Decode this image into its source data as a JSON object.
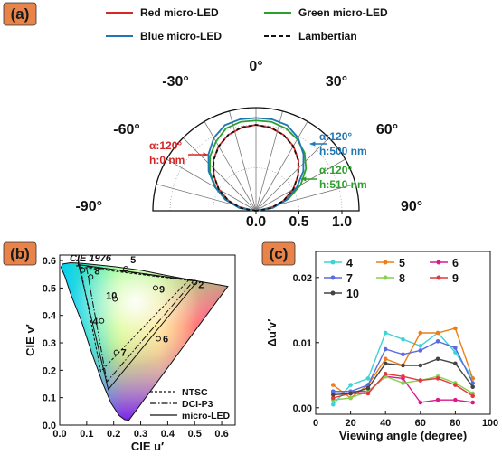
{
  "colors": {
    "red": "#d62728",
    "green": "#2ca02c",
    "blue": "#1f77b4",
    "black": "#111111",
    "badge": "#e8834a",
    "s4": "#3fd3d3",
    "s5": "#ee7e18",
    "s6": "#d81b8a",
    "s7": "#5a6be0",
    "s8": "#86cf52",
    "s9": "#e3393b",
    "s10": "#444444"
  },
  "chart_data": [
    {
      "panel_label": "(a)",
      "type": "polar",
      "legend": [
        "Red micro-LED",
        "Green micro-LED",
        "Blue micro-LED",
        "Lambertian"
      ],
      "angle_ticks": [
        "0°",
        "30°",
        "60°",
        "90°",
        "-30°",
        "-60°",
        "-90°"
      ],
      "radial_ticks": [
        "0.0",
        "0.5",
        "1.0"
      ],
      "rlim": [
        0,
        1.2
      ],
      "annotations": {
        "red": {
          "alpha": "α:120°",
          "h": "h:0 nm"
        },
        "blue": {
          "alpha": "α:120°",
          "h": "h:500 nm"
        },
        "green": {
          "alpha": "α:120°",
          "h": "h:510 nm"
        }
      },
      "series": [
        {
          "name": "Red micro-LED",
          "angles": [
            -90,
            -80,
            -70,
            -60,
            -50,
            -40,
            -30,
            -20,
            -10,
            0,
            10,
            20,
            30,
            40,
            50,
            60,
            70,
            80,
            90
          ],
          "values": [
            0.0,
            0.18,
            0.34,
            0.5,
            0.64,
            0.77,
            0.87,
            0.94,
            0.98,
            1.0,
            0.98,
            0.94,
            0.87,
            0.77,
            0.64,
            0.5,
            0.34,
            0.18,
            0.0
          ]
        },
        {
          "name": "Green micro-LED",
          "angles": [
            -90,
            -80,
            -70,
            -60,
            -50,
            -40,
            -30,
            -20,
            -10,
            0,
            10,
            20,
            30,
            40,
            50,
            60,
            70,
            80,
            90
          ],
          "values": [
            0.0,
            0.2,
            0.38,
            0.54,
            0.7,
            0.83,
            0.93,
            1.02,
            1.05,
            1.05,
            1.05,
            1.02,
            0.96,
            0.88,
            0.76,
            0.6,
            0.4,
            0.2,
            0.0
          ]
        },
        {
          "name": "Blue micro-LED",
          "angles": [
            -90,
            -80,
            -70,
            -60,
            -50,
            -40,
            -30,
            -20,
            -10,
            0,
            10,
            20,
            30,
            40,
            50,
            60,
            70,
            80,
            90
          ],
          "values": [
            0.0,
            0.2,
            0.38,
            0.55,
            0.72,
            0.86,
            0.98,
            1.06,
            1.08,
            1.08,
            1.08,
            1.06,
            0.98,
            0.86,
            0.72,
            0.55,
            0.38,
            0.2,
            0.0
          ]
        },
        {
          "name": "Lambertian",
          "angles": [
            -90,
            -80,
            -70,
            -60,
            -50,
            -40,
            -30,
            -20,
            -10,
            0,
            10,
            20,
            30,
            40,
            50,
            60,
            70,
            80,
            90
          ],
          "values": [
            0.0,
            0.174,
            0.342,
            0.5,
            0.643,
            0.766,
            0.866,
            0.94,
            0.985,
            1.0,
            0.985,
            0.94,
            0.866,
            0.766,
            0.643,
            0.5,
            0.342,
            0.174,
            0.0
          ]
        }
      ]
    },
    {
      "panel_label": "(b)",
      "type": "scatter",
      "title": "CIE 1976",
      "xlabel": "CIE u′",
      "ylabel": "CIE v′",
      "xlim": [
        0.0,
        0.65
      ],
      "ylim": [
        0.0,
        0.62
      ],
      "xticks": [
        "0.0",
        "0.1",
        "0.2",
        "0.3",
        "0.4",
        "0.5",
        "0.6"
      ],
      "yticks": [
        "0.0",
        "0.1",
        "0.2",
        "0.3",
        "0.4",
        "0.5",
        "0.6"
      ],
      "legend": [
        "NTSC",
        "DCI-P3",
        "micro-LED"
      ],
      "gamuts": {
        "NTSC": [
          [
            0.076,
            0.576
          ],
          [
            0.477,
            0.528
          ],
          [
            0.152,
            0.196
          ]
        ],
        "DCI-P3": [
          [
            0.099,
            0.578
          ],
          [
            0.496,
            0.526
          ],
          [
            0.175,
            0.158
          ]
        ],
        "micro-LED": [
          [
            0.07,
            0.585
          ],
          [
            0.51,
            0.525
          ],
          [
            0.18,
            0.13
          ]
        ]
      },
      "points": [
        {
          "label": "1",
          "u": 0.085,
          "v": 0.565
        },
        {
          "label": "2",
          "u": 0.5,
          "v": 0.52
        },
        {
          "label": "4",
          "u": 0.155,
          "v": 0.38
        },
        {
          "label": "5",
          "u": 0.245,
          "v": 0.57
        },
        {
          "label": "6",
          "u": 0.365,
          "v": 0.315
        },
        {
          "label": "7",
          "u": 0.21,
          "v": 0.265
        },
        {
          "label": "8",
          "u": 0.115,
          "v": 0.54
        },
        {
          "label": "9",
          "u": 0.355,
          "v": 0.5
        },
        {
          "label": "10",
          "u": 0.205,
          "v": 0.46
        }
      ]
    },
    {
      "panel_label": "(c)",
      "type": "line",
      "xlabel": "Viewing angle (degree)",
      "ylabel": "Δu′v′",
      "xlim": [
        0,
        100
      ],
      "ylim": [
        -0.001,
        0.024
      ],
      "xticks": [
        "0",
        "20",
        "40",
        "60",
        "80",
        "100"
      ],
      "yticks": [
        "0.00",
        "0.01",
        "0.02"
      ],
      "x": [
        10,
        20,
        30,
        40,
        50,
        60,
        70,
        80,
        90
      ],
      "series": [
        {
          "name": "4",
          "values": [
            0.0005,
            0.0035,
            0.0045,
            0.0115,
            0.0105,
            0.0095,
            0.0115,
            0.0085,
            0.0045
          ]
        },
        {
          "name": "5",
          "values": [
            0.0035,
            0.0015,
            0.0035,
            0.0075,
            0.0065,
            0.0115,
            0.0115,
            0.0122,
            0.0045
          ]
        },
        {
          "name": "6",
          "values": [
            0.0025,
            0.0025,
            0.0025,
            0.0048,
            0.0045,
            0.0008,
            0.0012,
            0.0012,
            0.0008
          ]
        },
        {
          "name": "7",
          "values": [
            0.0025,
            0.0025,
            0.0035,
            0.009,
            0.0082,
            0.0088,
            0.0102,
            0.0092,
            0.0038
          ]
        },
        {
          "name": "8",
          "values": [
            0.0012,
            0.0015,
            0.0025,
            0.0048,
            0.0038,
            0.0042,
            0.0048,
            0.0038,
            0.0022
          ]
        },
        {
          "name": "9",
          "values": [
            0.0015,
            0.0022,
            0.0022,
            0.0052,
            0.0048,
            0.0042,
            0.0045,
            0.0035,
            0.0018
          ]
        },
        {
          "name": "10",
          "values": [
            0.002,
            0.0022,
            0.003,
            0.0068,
            0.0065,
            0.0065,
            0.0075,
            0.0068,
            0.0032
          ]
        }
      ]
    }
  ]
}
